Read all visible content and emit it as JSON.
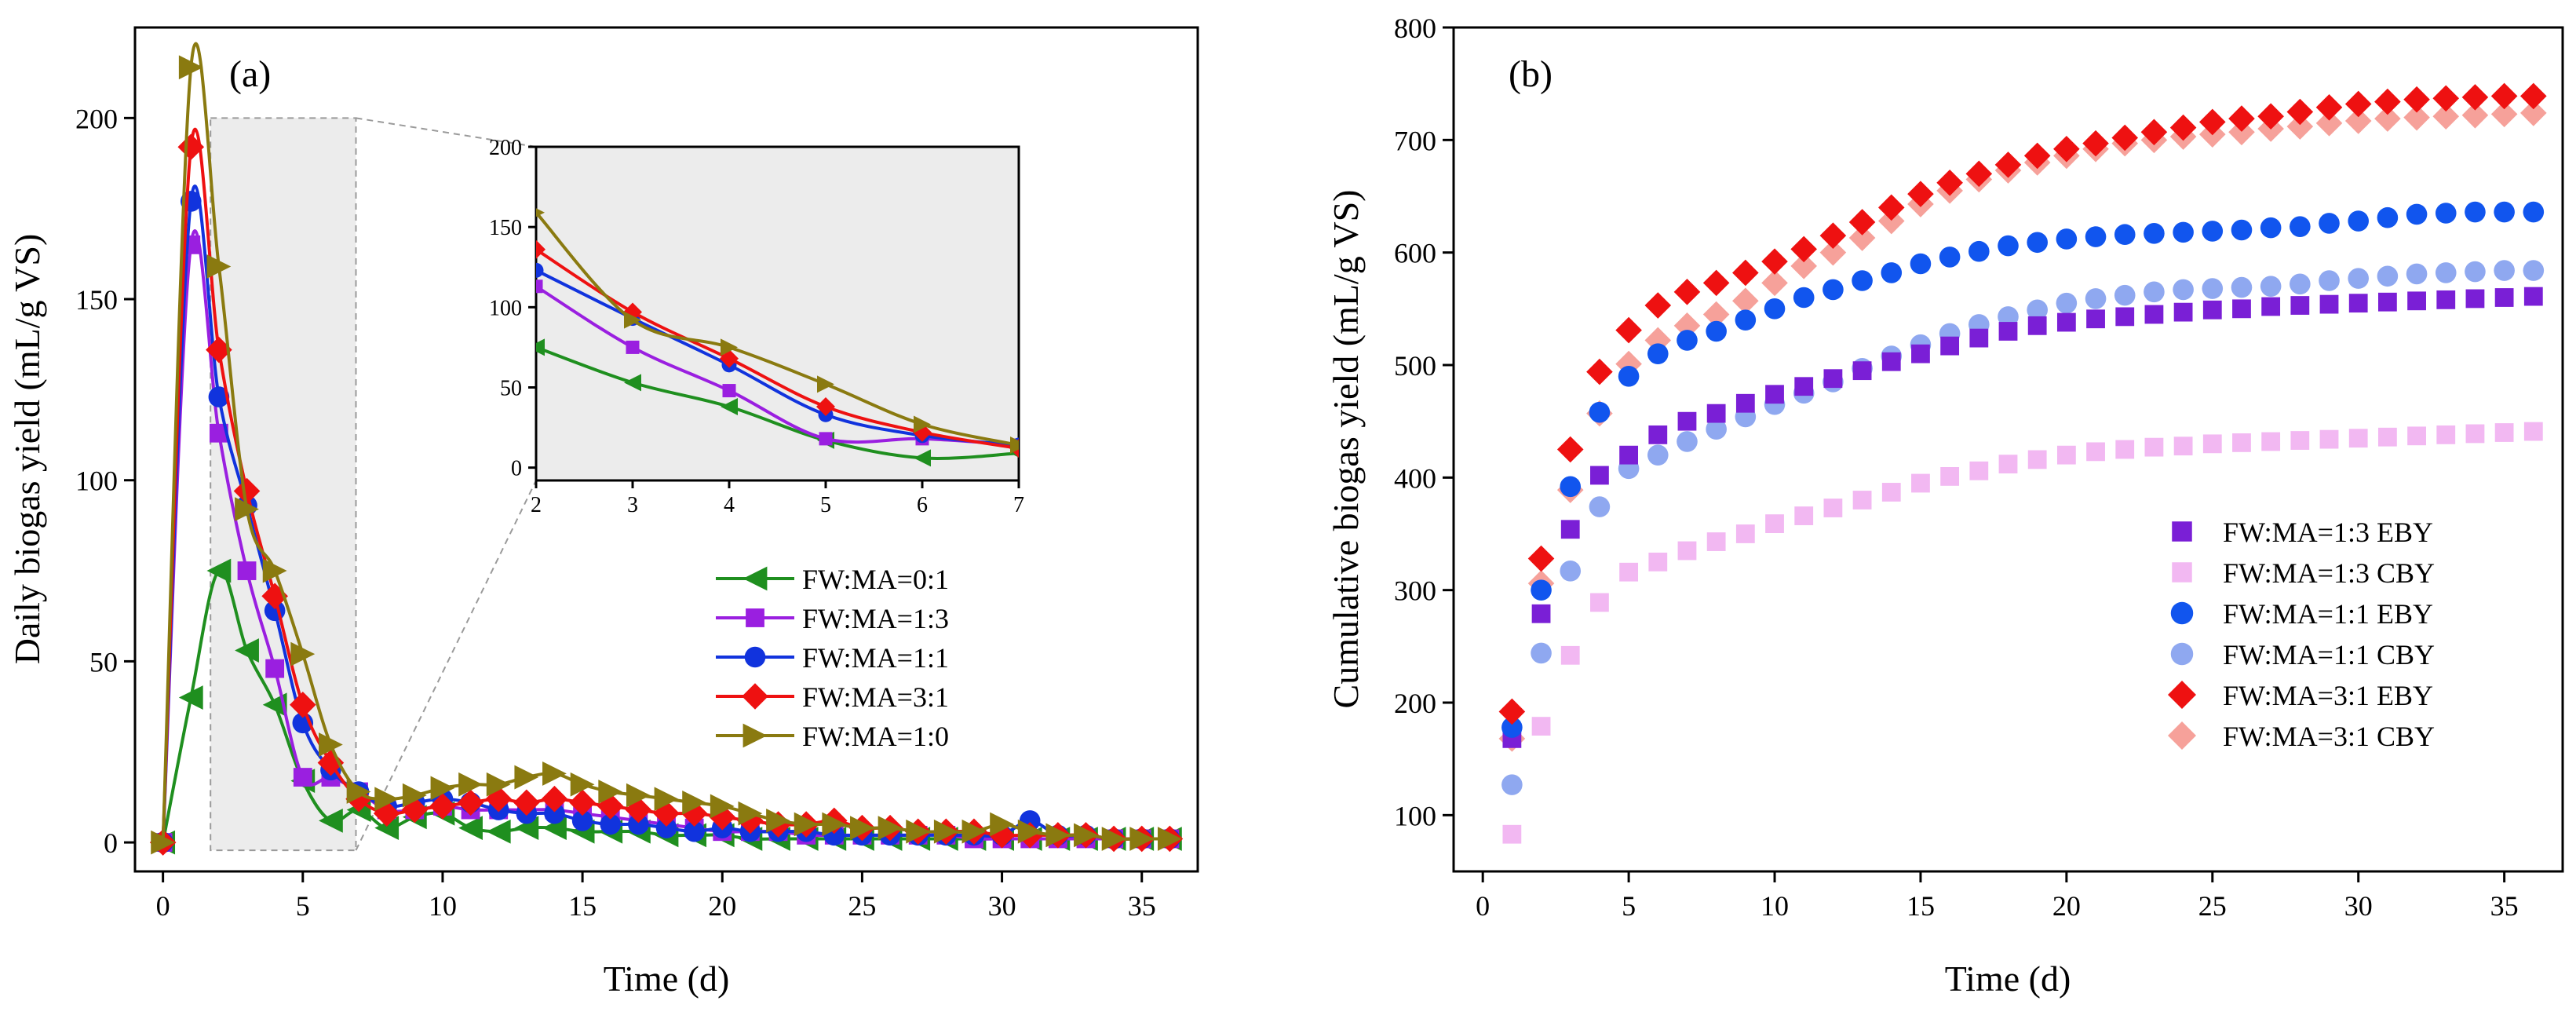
{
  "figure": {
    "panel_a_label": "(a)",
    "panel_b_label": "(b)"
  },
  "chart_data": [
    {
      "type": "line",
      "panel": "(a)",
      "title": "",
      "xlabel": "Time (d)",
      "ylabel": "Daily biogas yield (mL/g VS)",
      "xlim": [
        -1,
        37
      ],
      "ylim": [
        -8,
        225
      ],
      "xticks": [
        0,
        5,
        10,
        15,
        20,
        25,
        30,
        35
      ],
      "yticks": [
        0,
        50,
        100,
        150,
        200
      ],
      "legend_position": "right-middle",
      "highlight_region": [
        1.7,
        6.9
      ],
      "x": [
        0,
        1,
        2,
        3,
        4,
        5,
        6,
        7,
        8,
        9,
        10,
        11,
        12,
        13,
        14,
        15,
        16,
        17,
        18,
        19,
        20,
        21,
        22,
        23,
        24,
        25,
        26,
        27,
        28,
        29,
        30,
        31,
        32,
        33,
        34,
        35,
        36
      ],
      "series": [
        {
          "name": "FW:MA=0:1",
          "color": "#1f8f1f",
          "marker": "triangle-left",
          "values": [
            0,
            40,
            75,
            53,
            38,
            17,
            6,
            9,
            4,
            7,
            8,
            4,
            3,
            4,
            4,
            3,
            3,
            3,
            2,
            2,
            2,
            1,
            1,
            1,
            1,
            1,
            1,
            1,
            1,
            1,
            1,
            1,
            1,
            1,
            1,
            1,
            1
          ]
        },
        {
          "name": "FW:MA=1:3",
          "color": "#9a1fe0",
          "marker": "square",
          "values": [
            0,
            165,
            113,
            75,
            48,
            18,
            18,
            14,
            9,
            9,
            10,
            9,
            9,
            9,
            9,
            8,
            7,
            6,
            5,
            4,
            3,
            3,
            3,
            2,
            2,
            2,
            2,
            2,
            2,
            1,
            1,
            1,
            1,
            1,
            1,
            1,
            1
          ]
        },
        {
          "name": "FW:MA=1:1",
          "color": "#1133dd",
          "marker": "circle",
          "values": [
            0,
            177,
            123,
            93,
            64,
            33,
            20,
            14,
            10,
            11,
            12,
            11,
            9,
            8,
            8,
            6,
            5,
            5,
            4,
            3,
            4,
            3,
            3,
            3,
            2,
            2,
            2,
            2,
            2,
            2,
            2,
            6,
            2,
            2,
            1,
            1,
            1
          ]
        },
        {
          "name": "FW:MA=3:1",
          "color": "#ee1111",
          "marker": "diamond",
          "values": [
            0,
            192,
            136,
            97,
            68,
            38,
            22,
            12,
            8,
            9,
            10,
            11,
            12,
            11,
            12,
            11,
            10,
            9,
            8,
            8,
            7,
            6,
            5,
            5,
            6,
            4,
            4,
            3,
            3,
            3,
            2,
            2,
            2,
            2,
            1,
            1,
            1
          ]
        },
        {
          "name": "FW:MA=1:0",
          "color": "#8a7a10",
          "marker": "triangle-right",
          "values": [
            0,
            214,
            159,
            92,
            75,
            52,
            27,
            14,
            12,
            13,
            15,
            16,
            16,
            18,
            19,
            16,
            14,
            13,
            12,
            11,
            10,
            8,
            6,
            5,
            5,
            4,
            4,
            3,
            3,
            3,
            5,
            3,
            2,
            2,
            1,
            1,
            1
          ]
        }
      ],
      "inset": {
        "xlim": [
          2,
          7
        ],
        "ylim": [
          -8,
          200
        ],
        "xticks": [
          2,
          3,
          4,
          5,
          6,
          7
        ],
        "yticks": [
          0,
          50,
          100,
          150,
          200
        ]
      }
    },
    {
      "type": "scatter",
      "panel": "(b)",
      "title": "",
      "xlabel": "Time (d)",
      "ylabel": "Cumulative biogas yield (mL/g VS)",
      "xlim": [
        -1,
        37
      ],
      "ylim": [
        50,
        800
      ],
      "xticks": [
        0,
        5,
        10,
        15,
        20,
        25,
        30,
        35
      ],
      "yticks": [
        100,
        200,
        300,
        400,
        500,
        600,
        700,
        800
      ],
      "legend_position": "bottom-right",
      "x": [
        1,
        2,
        3,
        4,
        5,
        6,
        7,
        8,
        9,
        10,
        11,
        12,
        13,
        14,
        15,
        16,
        17,
        18,
        19,
        20,
        21,
        22,
        23,
        24,
        25,
        26,
        27,
        28,
        29,
        30,
        31,
        32,
        33,
        34,
        35,
        36
      ],
      "series": [
        {
          "name": "FW:MA=1:3 EBY",
          "color": "#7a1fd6",
          "marker": "square",
          "values": [
            168,
            279,
            354,
            402,
            420,
            438,
            450,
            457,
            466,
            474,
            481,
            488,
            495,
            503,
            510,
            517,
            524,
            530,
            535,
            538,
            541,
            543,
            545,
            547,
            549,
            550,
            552,
            553,
            554,
            555,
            556,
            557,
            558,
            559,
            560,
            561
          ]
        },
        {
          "name": "FW:MA=1:3 CBY",
          "color": "#f2b8f2",
          "marker": "square",
          "values": [
            83,
            179,
            242,
            289,
            316,
            325,
            335,
            343,
            350,
            359,
            366,
            373,
            380,
            387,
            395,
            401,
            406,
            412,
            416,
            420,
            423,
            425,
            427,
            428,
            430,
            431,
            432,
            433,
            434,
            435,
            436,
            437,
            438,
            439,
            440,
            441
          ]
        },
        {
          "name": "FW:MA=1:1 EBY",
          "color": "#1155ee",
          "marker": "circle",
          "values": [
            178,
            300,
            392,
            458,
            490,
            510,
            522,
            530,
            540,
            550,
            560,
            567,
            575,
            582,
            590,
            596,
            601,
            606,
            609,
            612,
            614,
            616,
            617,
            618,
            619,
            620,
            622,
            623,
            626,
            628,
            631,
            634,
            635,
            636,
            636,
            636
          ]
        },
        {
          "name": "FW:MA=1:1 CBY",
          "color": "#8fa8f0",
          "marker": "circle",
          "values": [
            127,
            244,
            317,
            374,
            408,
            420,
            432,
            443,
            454,
            465,
            475,
            485,
            497,
            508,
            518,
            528,
            536,
            543,
            549,
            555,
            559,
            562,
            565,
            567,
            568,
            569,
            570,
            572,
            575,
            577,
            579,
            581,
            582,
            583,
            584,
            584
          ]
        },
        {
          "name": "FW:MA=3:1 EBY",
          "color": "#ee1111",
          "marker": "diamond",
          "values": [
            192,
            328,
            425,
            494,
            531,
            553,
            565,
            573,
            582,
            592,
            603,
            615,
            627,
            640,
            652,
            662,
            670,
            678,
            686,
            692,
            697,
            702,
            707,
            711,
            716,
            719,
            721,
            725,
            729,
            732,
            734,
            736,
            737,
            738,
            739,
            739
          ]
        },
        {
          "name": "FW:MA=3:1 CBY",
          "color": "#f6a19a",
          "marker": "diamond",
          "values": [
            168,
            306,
            389,
            457,
            501,
            522,
            535,
            545,
            557,
            573,
            588,
            600,
            613,
            628,
            643,
            655,
            665,
            673,
            680,
            686,
            692,
            697,
            700,
            703,
            705,
            707,
            710,
            712,
            715,
            717,
            719,
            720,
            721,
            722,
            723,
            724
          ]
        }
      ]
    }
  ]
}
